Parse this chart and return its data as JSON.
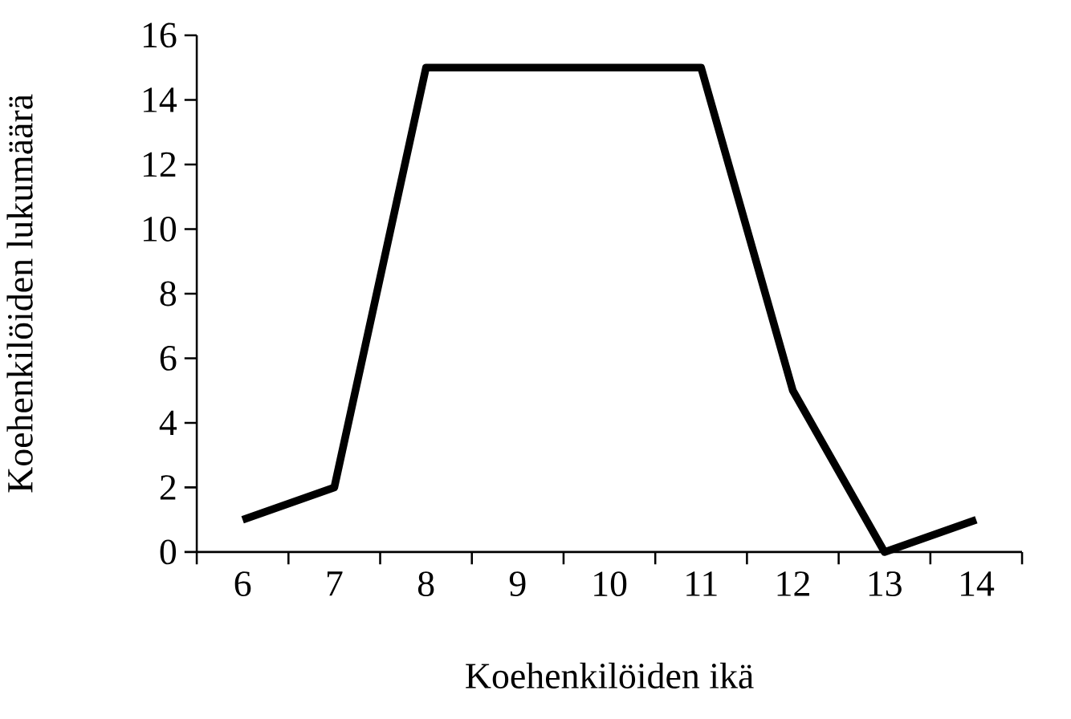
{
  "chart_data": {
    "type": "line",
    "xlabel": "Koehenkilöiden ikä",
    "ylabel": "Koehenkilöiden lukumäärä",
    "categories": [
      "6",
      "7",
      "8",
      "9",
      "10",
      "11",
      "12",
      "13",
      "14"
    ],
    "values": [
      1,
      2,
      15,
      15,
      15,
      15,
      5,
      0,
      1
    ],
    "color": "#000000",
    "ylim": [
      0,
      16
    ],
    "yticks": [
      0,
      2,
      4,
      6,
      8,
      10,
      12,
      14,
      16
    ],
    "marker": "none",
    "line_style": "solid"
  }
}
